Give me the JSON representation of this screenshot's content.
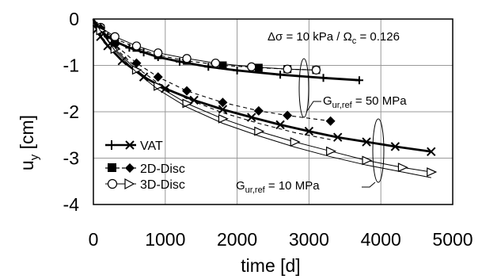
{
  "chart_data": {
    "type": "line",
    "xlabel": "time [d]",
    "ylabel": "u",
    "ylabel_subscript": "y",
    "ylabel_unit": " [cm]",
    "xlim": [
      0,
      5000
    ],
    "ylim": [
      -4,
      0
    ],
    "xticks": [
      0,
      1000,
      2000,
      3000,
      4000,
      5000
    ],
    "yticks": [
      0,
      -1,
      -2,
      -3,
      -4
    ],
    "grid": true,
    "legend_position": "bottom-left",
    "legend": [
      {
        "label": "VAT",
        "line": "solid",
        "markers": [
          "plus",
          "x"
        ]
      },
      {
        "label": "2D-Disc",
        "line": "dashed",
        "markers": [
          "square",
          "diamond"
        ]
      },
      {
        "label": "3D-Disc",
        "line": "thin",
        "markers": [
          "circle",
          "triangle-right"
        ]
      }
    ],
    "annotations": {
      "top_right": {
        "pre": "Δσ = 10 kPa / Ω",
        "sub": "c",
        "post": " = 0.126"
      },
      "g50": {
        "pre": "G",
        "sub": "ur,ref",
        "post": " = 50 MPa"
      },
      "g10": {
        "pre": "G",
        "sub": "ur,ref",
        "post": " = 10 MPa"
      }
    },
    "series": [
      {
        "name": "VAT",
        "group": "50 MPa",
        "style": "bold",
        "marker": "plus",
        "x": [
          0,
          50,
          100,
          200,
          300,
          500,
          700,
          900,
          1200,
          1600,
          2000,
          2600,
          3200,
          3700
        ],
        "y": [
          0,
          -0.15,
          -0.25,
          -0.38,
          -0.48,
          -0.62,
          -0.72,
          -0.82,
          -0.92,
          -1.03,
          -1.11,
          -1.2,
          -1.27,
          -1.32
        ]
      },
      {
        "name": "2D-Disc",
        "group": "50 MPa",
        "style": "dashed",
        "marker": "square",
        "x": [
          0,
          100,
          300,
          600,
          900,
          1300,
          1800,
          2300,
          2700,
          3100
        ],
        "y": [
          0,
          -0.2,
          -0.42,
          -0.62,
          -0.78,
          -0.9,
          -1.0,
          -1.05,
          -1.08,
          -1.1
        ]
      },
      {
        "name": "3D-Disc",
        "group": "50 MPa",
        "style": "thin",
        "marker": "circle",
        "x": [
          0,
          100,
          300,
          600,
          900,
          1300,
          1700,
          2200,
          2700,
          3100
        ],
        "y": [
          0,
          -0.18,
          -0.38,
          -0.58,
          -0.73,
          -0.85,
          -0.95,
          -1.03,
          -1.08,
          -1.1
        ]
      },
      {
        "name": "VAT",
        "group": "50 MPa",
        "style": "bold",
        "marker": "x",
        "x": [
          0,
          50,
          100,
          200,
          400,
          700,
          1000,
          1400,
          1800,
          2200,
          2600,
          3000,
          3400,
          3800,
          4200,
          4700
        ],
        "y": [
          0,
          -0.22,
          -0.38,
          -0.58,
          -0.9,
          -1.25,
          -1.5,
          -1.75,
          -1.95,
          -2.12,
          -2.28,
          -2.42,
          -2.55,
          -2.65,
          -2.75,
          -2.86
        ]
      },
      {
        "name": "2D-Disc",
        "group": "10 MPa",
        "style": "dashed",
        "marker": "diamond",
        "x": [
          0,
          100,
          300,
          600,
          900,
          1300,
          1800,
          2300,
          2700,
          3300
        ],
        "y": [
          0,
          -0.2,
          -0.55,
          -0.95,
          -1.25,
          -1.55,
          -1.8,
          -1.98,
          -2.08,
          -2.2
        ]
      },
      {
        "name": "3D-Disc",
        "group": "10 MPa",
        "style": "thin",
        "marker": "triangle",
        "x": [
          0,
          100,
          300,
          600,
          900,
          1300,
          1800,
          2300,
          2800,
          3300,
          3800,
          4300,
          4700
        ],
        "y": [
          0,
          -0.25,
          -0.65,
          -1.1,
          -1.45,
          -1.82,
          -2.15,
          -2.42,
          -2.65,
          -2.85,
          -3.05,
          -3.2,
          -3.3
        ]
      },
      {
        "name": "2D-Disc",
        "group": "10 MPa",
        "style": "thin",
        "marker": "none",
        "x": [
          0,
          100,
          300,
          600,
          900,
          1300,
          1800,
          2300,
          2800,
          3300,
          3800,
          4300,
          4700
        ],
        "y": [
          0,
          -0.26,
          -0.68,
          -1.15,
          -1.52,
          -1.9,
          -2.25,
          -2.52,
          -2.76,
          -2.97,
          -3.15,
          -3.3,
          -3.42
        ]
      },
      {
        "name": "3D-Disc",
        "group": "10 MPa",
        "style": "dashed",
        "marker": "none",
        "x": [
          0,
          100,
          300,
          600,
          900,
          1300,
          1800,
          2300,
          2800,
          3300
        ],
        "y": [
          0,
          -0.24,
          -0.62,
          -1.05,
          -1.38,
          -1.72,
          -2.02,
          -2.25,
          -2.45,
          -2.6
        ]
      }
    ]
  }
}
